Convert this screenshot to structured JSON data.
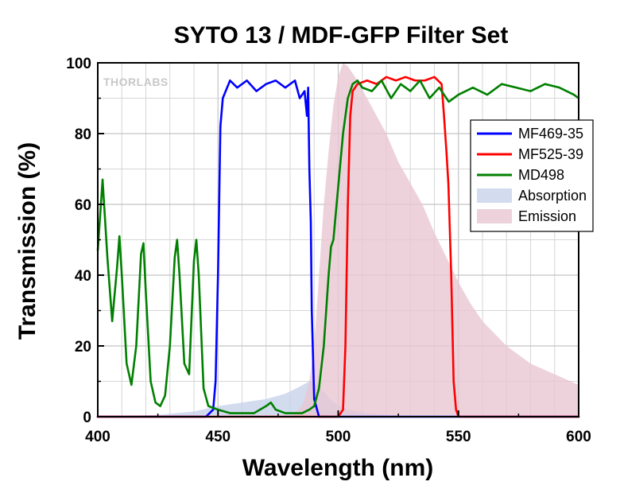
{
  "chart_data": {
    "type": "area",
    "title": "SYTO 13 / MDF-GFP Filter Set",
    "xlabel": "Wavelength (nm)",
    "ylabel": "Transmission (%)",
    "xlim": [
      400,
      600
    ],
    "ylim": [
      0,
      100
    ],
    "xticks": [
      400,
      450,
      500,
      550,
      600
    ],
    "yticks": [
      0,
      20,
      40,
      60,
      80,
      100
    ],
    "grid": true,
    "legend_position": "right",
    "watermark": "THORLABS",
    "series": [
      {
        "name": "MF469-35",
        "kind": "line",
        "color": "#0000ff",
        "x": [
          400,
          445,
          448,
          449,
          450,
          451,
          452,
          455,
          458,
          462,
          466,
          470,
          474,
          478,
          482,
          484,
          486,
          487,
          487.5,
          488,
          488.6,
          489,
          490,
          492,
          600
        ],
        "y": [
          0,
          0,
          2,
          10,
          40,
          82,
          90,
          95,
          93,
          95,
          92,
          94,
          95,
          93,
          95,
          90,
          92,
          85,
          93,
          70,
          55,
          30,
          5,
          0,
          0
        ]
      },
      {
        "name": "MF525-39",
        "kind": "line",
        "color": "#ff0000",
        "x": [
          400,
          500,
          502,
          503,
          504,
          505,
          506,
          508,
          512,
          516,
          520,
          524,
          528,
          532,
          536,
          540,
          543,
          544,
          545,
          545.8,
          546,
          547,
          548,
          549,
          550,
          600
        ],
        "y": [
          0,
          0,
          2,
          20,
          60,
          85,
          92,
          94,
          95,
          94,
          96,
          95,
          96,
          95,
          95,
          96,
          94,
          85,
          75,
          66,
          62,
          40,
          10,
          2,
          0,
          0
        ]
      },
      {
        "name": "MD498",
        "kind": "line",
        "color": "#008000",
        "x": [
          400,
          402,
          404,
          406,
          408,
          409,
          410,
          412,
          414,
          416,
          418,
          419,
          420,
          422,
          424,
          426,
          428,
          430,
          432,
          433,
          434,
          436,
          438,
          440,
          441,
          442,
          444,
          446,
          450,
          455,
          460,
          465,
          470,
          472,
          474,
          478,
          482,
          485,
          488,
          490,
          492,
          494,
          496,
          497,
          498,
          500,
          502,
          504,
          506,
          508,
          510,
          514,
          518,
          522,
          526,
          530,
          534,
          538,
          542,
          546,
          550,
          556,
          562,
          568,
          574,
          580,
          586,
          592,
          598,
          600
        ],
        "y": [
          47,
          67,
          45,
          27,
          42,
          51,
          40,
          15,
          9,
          20,
          46,
          49,
          35,
          10,
          4,
          3,
          6,
          20,
          45,
          50,
          40,
          15,
          12,
          44,
          50,
          40,
          8,
          3,
          2,
          1,
          1,
          1,
          3,
          4,
          2,
          1,
          1,
          1,
          2,
          3,
          8,
          20,
          40,
          48,
          50,
          65,
          80,
          90,
          94,
          95,
          93,
          92,
          95,
          90,
          94,
          92,
          95,
          90,
          93,
          89,
          91,
          93,
          91,
          94,
          93,
          92,
          94,
          93,
          91,
          90
        ]
      },
      {
        "name": "Absorption",
        "kind": "area",
        "color": "#c8d2eb",
        "x": [
          400,
          425,
          440,
          450,
          460,
          470,
          478,
          484,
          488,
          491,
          494,
          498,
          504,
          512,
          520,
          530,
          600
        ],
        "y": [
          0,
          0.5,
          1.5,
          3,
          4,
          5,
          6.5,
          8.5,
          10,
          9,
          7,
          4,
          2,
          1,
          0.5,
          0,
          0
        ]
      },
      {
        "name": "Emission",
        "kind": "area",
        "color": "#e8c7d3",
        "x": [
          400,
          480,
          485,
          488,
          490,
          492,
          494,
          496,
          498,
          500,
          502,
          504,
          506,
          508,
          512,
          516,
          520,
          525,
          530,
          535,
          540,
          545,
          550,
          555,
          560,
          570,
          580,
          590,
          600
        ],
        "y": [
          0,
          0,
          3,
          10,
          20,
          40,
          60,
          75,
          88,
          96,
          100,
          99,
          97,
          95,
          90,
          85,
          80,
          72,
          66,
          60,
          52,
          45,
          38,
          32,
          27,
          20,
          15,
          12,
          9
        ]
      }
    ]
  }
}
